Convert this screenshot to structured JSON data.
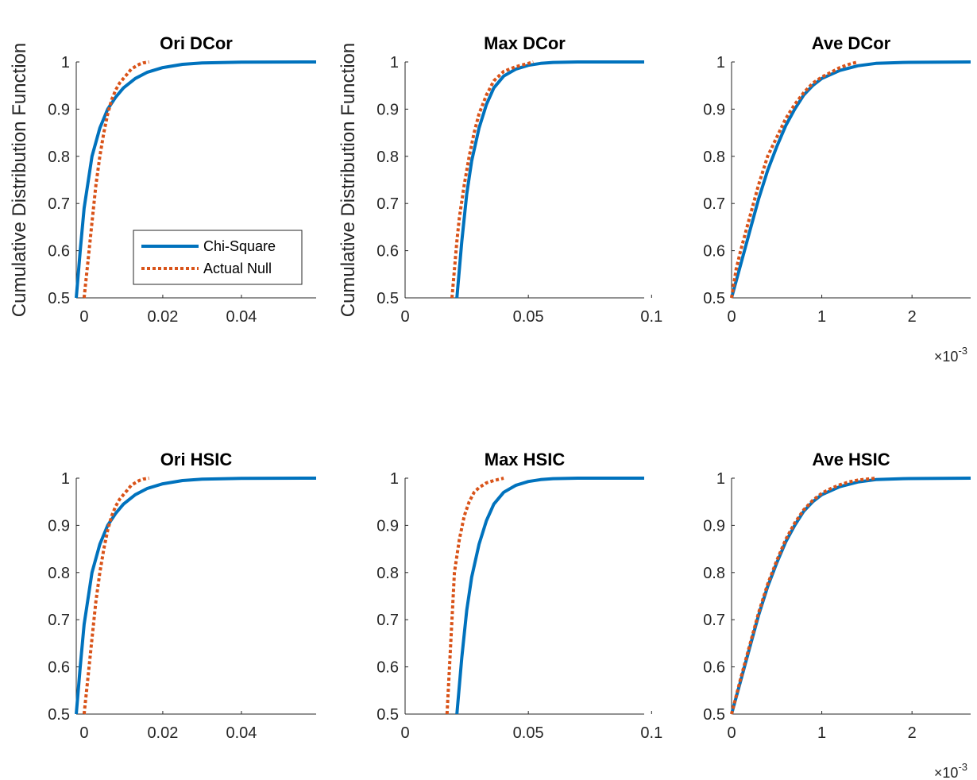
{
  "series_styles": {
    "Chi-Square": {
      "color": "#0072BD",
      "dash": "solid"
    },
    "Actual Null": {
      "color": "#D95319",
      "dash": "dotted"
    }
  },
  "legend_items": [
    "Chi-Square",
    "Actual Null"
  ],
  "chart_data": [
    {
      "type": "line",
      "title": "Ori DCor",
      "ylabel": "Cumulative Distribution Function",
      "xlim": [
        -0.002,
        0.059
      ],
      "ylim": [
        0.5,
        1.0
      ],
      "xticks": [
        0,
        0.02,
        0.04
      ],
      "xtick_labels": [
        "0",
        "0.02",
        "0.04"
      ],
      "yticks": [
        0.5,
        0.6,
        0.7,
        0.8,
        0.9,
        1.0
      ],
      "ytick_labels": [
        "0.5",
        "0.6",
        "0.7",
        "0.8",
        "0.9",
        "1"
      ],
      "x_exponent": "",
      "legend": "inside lower-right",
      "series": [
        {
          "name": "Chi-Square",
          "x": [
            -0.002,
            -0.001,
            0.0,
            0.002,
            0.004,
            0.006,
            0.008,
            0.01,
            0.013,
            0.016,
            0.02,
            0.025,
            0.03,
            0.04,
            0.059
          ],
          "y": [
            0.5,
            0.6,
            0.69,
            0.8,
            0.86,
            0.9,
            0.925,
            0.945,
            0.965,
            0.978,
            0.988,
            0.995,
            0.998,
            0.9995,
            1.0
          ]
        },
        {
          "name": "Actual Null",
          "x": [
            0.0,
            0.001,
            0.002,
            0.003,
            0.004,
            0.005,
            0.006,
            0.007,
            0.008,
            0.009,
            0.01,
            0.011,
            0.012,
            0.013,
            0.014,
            0.015,
            0.0165
          ],
          "y": [
            0.5,
            0.58,
            0.66,
            0.74,
            0.8,
            0.85,
            0.89,
            0.92,
            0.94,
            0.955,
            0.965,
            0.975,
            0.985,
            0.99,
            0.995,
            0.998,
            1.0
          ]
        }
      ]
    },
    {
      "type": "line",
      "title": "Max DCor",
      "ylabel": "Cumulative Distribution Function",
      "xlim": [
        0,
        0.097
      ],
      "ylim": [
        0.5,
        1.0
      ],
      "xticks": [
        0,
        0.05,
        0.1
      ],
      "xtick_labels": [
        "0",
        "0.05",
        "0.1"
      ],
      "yticks": [
        0.5,
        0.6,
        0.7,
        0.8,
        0.9,
        1.0
      ],
      "ytick_labels": [
        "0.5",
        "0.6",
        "0.7",
        "0.8",
        "0.9",
        "1"
      ],
      "x_exponent": "",
      "series": [
        {
          "name": "Chi-Square",
          "x": [
            0.021,
            0.023,
            0.025,
            0.027,
            0.03,
            0.033,
            0.036,
            0.04,
            0.045,
            0.05,
            0.055,
            0.06,
            0.07,
            0.097
          ],
          "y": [
            0.5,
            0.62,
            0.72,
            0.79,
            0.86,
            0.91,
            0.945,
            0.97,
            0.985,
            0.993,
            0.997,
            0.999,
            1.0,
            1.0
          ]
        },
        {
          "name": "Actual Null",
          "x": [
            0.019,
            0.02,
            0.021,
            0.022,
            0.024,
            0.026,
            0.028,
            0.03,
            0.033,
            0.036,
            0.04,
            0.045,
            0.05,
            0.052
          ],
          "y": [
            0.5,
            0.56,
            0.62,
            0.67,
            0.74,
            0.8,
            0.85,
            0.89,
            0.93,
            0.96,
            0.98,
            0.99,
            0.997,
            1.0
          ]
        }
      ]
    },
    {
      "type": "line",
      "title": "Ave DCor",
      "ylabel": "",
      "xlim": [
        0,
        0.00265
      ],
      "ylim": [
        0.5,
        1.0
      ],
      "xticks": [
        0,
        0.001,
        0.002
      ],
      "xtick_labels": [
        "0",
        "1",
        "2"
      ],
      "yticks": [
        0.5,
        0.6,
        0.7,
        0.8,
        0.9,
        1.0
      ],
      "ytick_labels": [
        "0.5",
        "0.6",
        "0.7",
        "0.8",
        "0.9",
        "1"
      ],
      "x_exponent": "×10-3",
      "series": [
        {
          "name": "Chi-Square",
          "x": [
            0,
            0.0001,
            0.0002,
            0.0003,
            0.0004,
            0.0005,
            0.0006,
            0.0007,
            0.0008,
            0.0009,
            0.001,
            0.0012,
            0.0014,
            0.0016,
            0.0019,
            0.00265
          ],
          "y": [
            0.5,
            0.57,
            0.64,
            0.71,
            0.77,
            0.82,
            0.865,
            0.9,
            0.93,
            0.95,
            0.965,
            0.982,
            0.992,
            0.997,
            0.999,
            1.0
          ]
        },
        {
          "name": "Actual Null",
          "x": [
            0,
            5e-05,
            0.0001,
            0.0002,
            0.0003,
            0.0004,
            0.0005,
            0.0006,
            0.0007,
            0.0008,
            0.0009,
            0.001,
            0.0011,
            0.0012,
            0.0013,
            0.0014
          ],
          "y": [
            0.5,
            0.56,
            0.6,
            0.67,
            0.74,
            0.8,
            0.84,
            0.88,
            0.91,
            0.935,
            0.955,
            0.968,
            0.978,
            0.988,
            0.995,
            1.0
          ]
        }
      ]
    },
    {
      "type": "line",
      "title": "Ori HSIC",
      "ylabel": "",
      "xlim": [
        -0.002,
        0.059
      ],
      "ylim": [
        0.5,
        1.0
      ],
      "xticks": [
        0,
        0.02,
        0.04
      ],
      "xtick_labels": [
        "0",
        "0.02",
        "0.04"
      ],
      "yticks": [
        0.5,
        0.6,
        0.7,
        0.8,
        0.9,
        1.0
      ],
      "ytick_labels": [
        "0.5",
        "0.6",
        "0.7",
        "0.8",
        "0.9",
        "1"
      ],
      "x_exponent": "",
      "series": [
        {
          "name": "Chi-Square",
          "x": [
            -0.002,
            -0.001,
            0.0,
            0.002,
            0.004,
            0.006,
            0.008,
            0.01,
            0.013,
            0.016,
            0.02,
            0.025,
            0.03,
            0.04,
            0.059
          ],
          "y": [
            0.5,
            0.6,
            0.69,
            0.8,
            0.86,
            0.9,
            0.925,
            0.945,
            0.965,
            0.978,
            0.988,
            0.995,
            0.998,
            0.9995,
            1.0
          ]
        },
        {
          "name": "Actual Null",
          "x": [
            0.0,
            0.001,
            0.002,
            0.003,
            0.004,
            0.005,
            0.006,
            0.007,
            0.008,
            0.009,
            0.01,
            0.011,
            0.012,
            0.013,
            0.014,
            0.015,
            0.0165
          ],
          "y": [
            0.5,
            0.58,
            0.66,
            0.74,
            0.8,
            0.85,
            0.89,
            0.92,
            0.94,
            0.955,
            0.965,
            0.975,
            0.985,
            0.99,
            0.995,
            0.998,
            1.0
          ]
        }
      ]
    },
    {
      "type": "line",
      "title": "Max HSIC",
      "ylabel": "",
      "xlim": [
        0,
        0.097
      ],
      "ylim": [
        0.5,
        1.0
      ],
      "xticks": [
        0,
        0.05,
        0.1
      ],
      "xtick_labels": [
        "0",
        "0.05",
        "0.1"
      ],
      "yticks": [
        0.5,
        0.6,
        0.7,
        0.8,
        0.9,
        1.0
      ],
      "ytick_labels": [
        "0.5",
        "0.6",
        "0.7",
        "0.8",
        "0.9",
        "1"
      ],
      "x_exponent": "",
      "series": [
        {
          "name": "Chi-Square",
          "x": [
            0.021,
            0.023,
            0.025,
            0.027,
            0.03,
            0.033,
            0.036,
            0.04,
            0.045,
            0.05,
            0.055,
            0.06,
            0.07,
            0.097
          ],
          "y": [
            0.5,
            0.62,
            0.72,
            0.79,
            0.86,
            0.91,
            0.945,
            0.97,
            0.985,
            0.993,
            0.997,
            0.999,
            1.0,
            1.0
          ]
        },
        {
          "name": "Actual Null",
          "x": [
            0.017,
            0.018,
            0.019,
            0.02,
            0.022,
            0.024,
            0.026,
            0.028,
            0.03,
            0.033,
            0.036,
            0.04
          ],
          "y": [
            0.5,
            0.6,
            0.7,
            0.8,
            0.87,
            0.92,
            0.95,
            0.97,
            0.98,
            0.99,
            0.995,
            1.0
          ]
        }
      ]
    },
    {
      "type": "line",
      "title": "Ave HSIC",
      "ylabel": "",
      "xlim": [
        0,
        0.00265
      ],
      "ylim": [
        0.5,
        1.0
      ],
      "xticks": [
        0,
        0.001,
        0.002
      ],
      "xtick_labels": [
        "0",
        "1",
        "2"
      ],
      "yticks": [
        0.5,
        0.6,
        0.7,
        0.8,
        0.9,
        1.0
      ],
      "ytick_labels": [
        "0.5",
        "0.6",
        "0.7",
        "0.8",
        "0.9",
        "1"
      ],
      "x_exponent": "×10-3",
      "series": [
        {
          "name": "Chi-Square",
          "x": [
            0,
            0.0001,
            0.0002,
            0.0003,
            0.0004,
            0.0005,
            0.0006,
            0.0007,
            0.0008,
            0.0009,
            0.001,
            0.0012,
            0.0014,
            0.0016,
            0.0019,
            0.00265
          ],
          "y": [
            0.5,
            0.57,
            0.64,
            0.71,
            0.77,
            0.82,
            0.865,
            0.9,
            0.93,
            0.95,
            0.965,
            0.982,
            0.992,
            0.997,
            0.999,
            1.0
          ]
        },
        {
          "name": "Actual Null",
          "x": [
            0,
            0.0001,
            0.0002,
            0.0003,
            0.0004,
            0.0005,
            0.0006,
            0.0007,
            0.0008,
            0.0009,
            0.001,
            0.0011,
            0.0012,
            0.0013,
            0.0014,
            0.0016
          ],
          "y": [
            0.5,
            0.575,
            0.645,
            0.715,
            0.775,
            0.825,
            0.87,
            0.905,
            0.933,
            0.953,
            0.968,
            0.978,
            0.986,
            0.992,
            0.996,
            1.0
          ]
        }
      ]
    }
  ]
}
